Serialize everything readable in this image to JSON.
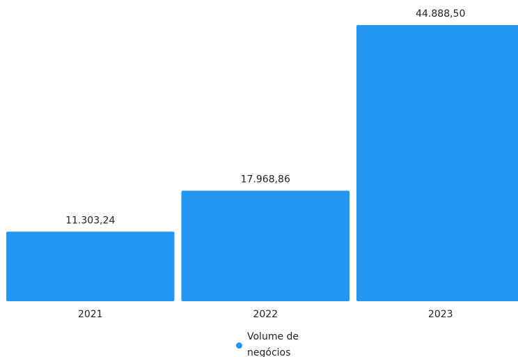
{
  "chart_data": {
    "type": "bar",
    "categories": [
      "2021",
      "2022",
      "2023"
    ],
    "series": [
      {
        "name": "Volume de negócios",
        "values": [
          11303.24,
          17968.86,
          44888.5
        ],
        "labels": [
          "11.303,24",
          "17.968,86",
          "44.888,50"
        ],
        "color": "#2196F3"
      }
    ],
    "title": "",
    "xlabel": "",
    "ylabel": "",
    "grid": false,
    "legend": "bottom"
  },
  "legend": {
    "line1": "Volume de",
    "line2": "negócios"
  }
}
